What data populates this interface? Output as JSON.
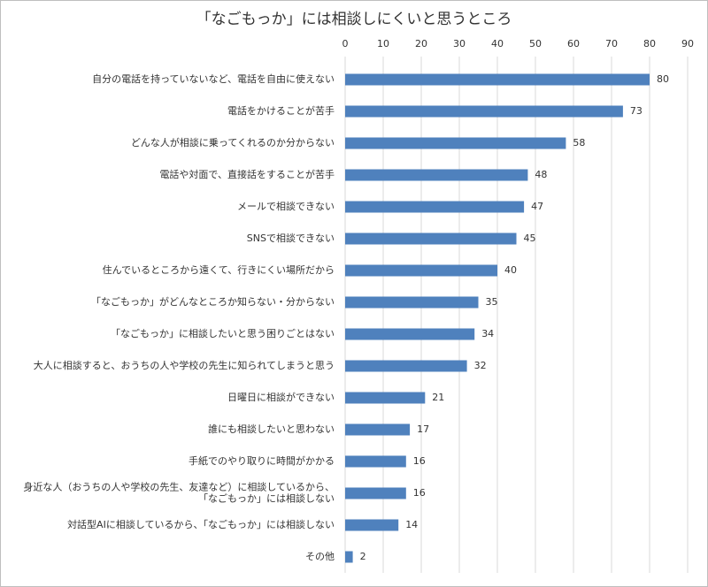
{
  "chart_data": {
    "type": "bar",
    "orientation": "horizontal",
    "title": "「なごもっか」には相談しにくいと思うところ",
    "categories": [
      "自分の電話を持っていないなど、電話を自由に使えない",
      "電話をかけることが苦手",
      "どんな人が相談に乗ってくれるのか分からない",
      "電話や対面で、直接話をすることが苦手",
      "メールで相談できない",
      "SNSで相談できない",
      "住んでいるところから遠くて、行きにくい場所だから",
      "「なごもっか」がどんなところか知らない・分からない",
      "「なごもっか」に相談したいと思う困りごとはない",
      "大人に相談すると、おうちの人や学校の先生に知られてしまうと思う",
      "日曜日に相談ができない",
      "誰にも相談したいと思わない",
      "手紙でのやり取りに時間がかかる",
      "身近な人（おうちの人や学校の先生、友達など）に相談しているから、\n「なごもっか」には相談しない",
      "対話型AIに相談しているから、「なごもっか」には相談しない",
      "その他"
    ],
    "values": [
      80,
      73,
      58,
      48,
      47,
      45,
      40,
      35,
      34,
      32,
      21,
      17,
      16,
      16,
      14,
      2
    ],
    "color": "#4f81bd",
    "xlim": [
      0,
      90
    ],
    "xticks": [
      0,
      10,
      20,
      30,
      40,
      50,
      60,
      70,
      80,
      90
    ],
    "grid": true
  }
}
